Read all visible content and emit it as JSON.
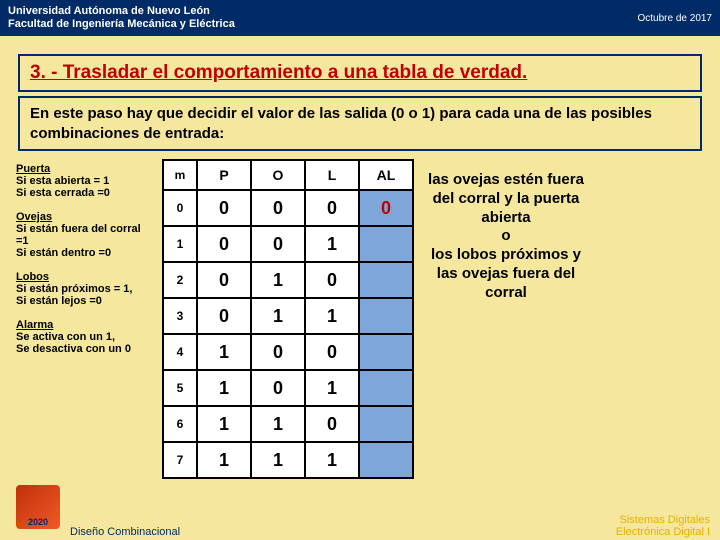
{
  "colors": {
    "header_bg": "#002b66",
    "accent_bg": "#f5e79e",
    "hl_cell": "#7ea6d9",
    "title_color": "#c00000",
    "red_zero": "#c00000",
    "footer_right": "#e8b000"
  },
  "header": {
    "uni": "Universidad Autónoma de Nuevo León",
    "dept": "Facultad de Ingeniería Mecánica y Eléctrica",
    "date": "Octubre de 2017"
  },
  "title": "3. - Trasladar el comportamiento a una tabla de verdad.",
  "instruction": "En este paso hay que decidir el valor de las salida (0 o 1) para cada una de las posibles combinaciones de entrada:",
  "defs": [
    {
      "title": "Puerta",
      "lines": [
        "Si esta abierta = 1",
        "Si esta cerrada =0"
      ]
    },
    {
      "title": "Ovejas",
      "lines": [
        "Si están fuera del corral =1",
        "Si están dentro =0"
      ]
    },
    {
      "title": "Lobos",
      "lines": [
        "Si están próximos = 1,",
        "Si están lejos =0"
      ]
    },
    {
      "title": "Alarma",
      "lines": [
        "Se activa con un 1,",
        "Se desactiva con un 0"
      ]
    }
  ],
  "table": {
    "headers": [
      "m",
      "P",
      "O",
      "L",
      "AL"
    ],
    "rows": [
      {
        "m": "0",
        "P": "0",
        "O": "0",
        "L": "0",
        "AL": "0",
        "hl_al": true,
        "red_al": true
      },
      {
        "m": "1",
        "P": "0",
        "O": "0",
        "L": "1",
        "AL": "",
        "hl_al": true
      },
      {
        "m": "2",
        "P": "0",
        "O": "1",
        "L": "0",
        "AL": "",
        "hl_al": true
      },
      {
        "m": "3",
        "P": "0",
        "O": "1",
        "L": "1",
        "AL": "",
        "hl_al": true
      },
      {
        "m": "4",
        "P": "1",
        "O": "0",
        "L": "0",
        "AL": "",
        "hl_al": true
      },
      {
        "m": "5",
        "P": "1",
        "O": "0",
        "L": "1",
        "AL": "",
        "hl_al": true
      },
      {
        "m": "6",
        "P": "1",
        "O": "1",
        "L": "0",
        "AL": "",
        "hl_al": true
      },
      {
        "m": "7",
        "P": "1",
        "O": "1",
        "L": "1",
        "AL": "",
        "hl_al": true
      }
    ]
  },
  "right": {
    "l1": "las ovejas estén fuera del corral y la puerta abierta",
    "l2": "o",
    "l3": "los lobos próximos y las ovejas fuera del corral"
  },
  "footer": {
    "left": "Diseño Combinacional",
    "right1": "Sistemas Digitales",
    "right2": "Electrónica Digital I"
  }
}
